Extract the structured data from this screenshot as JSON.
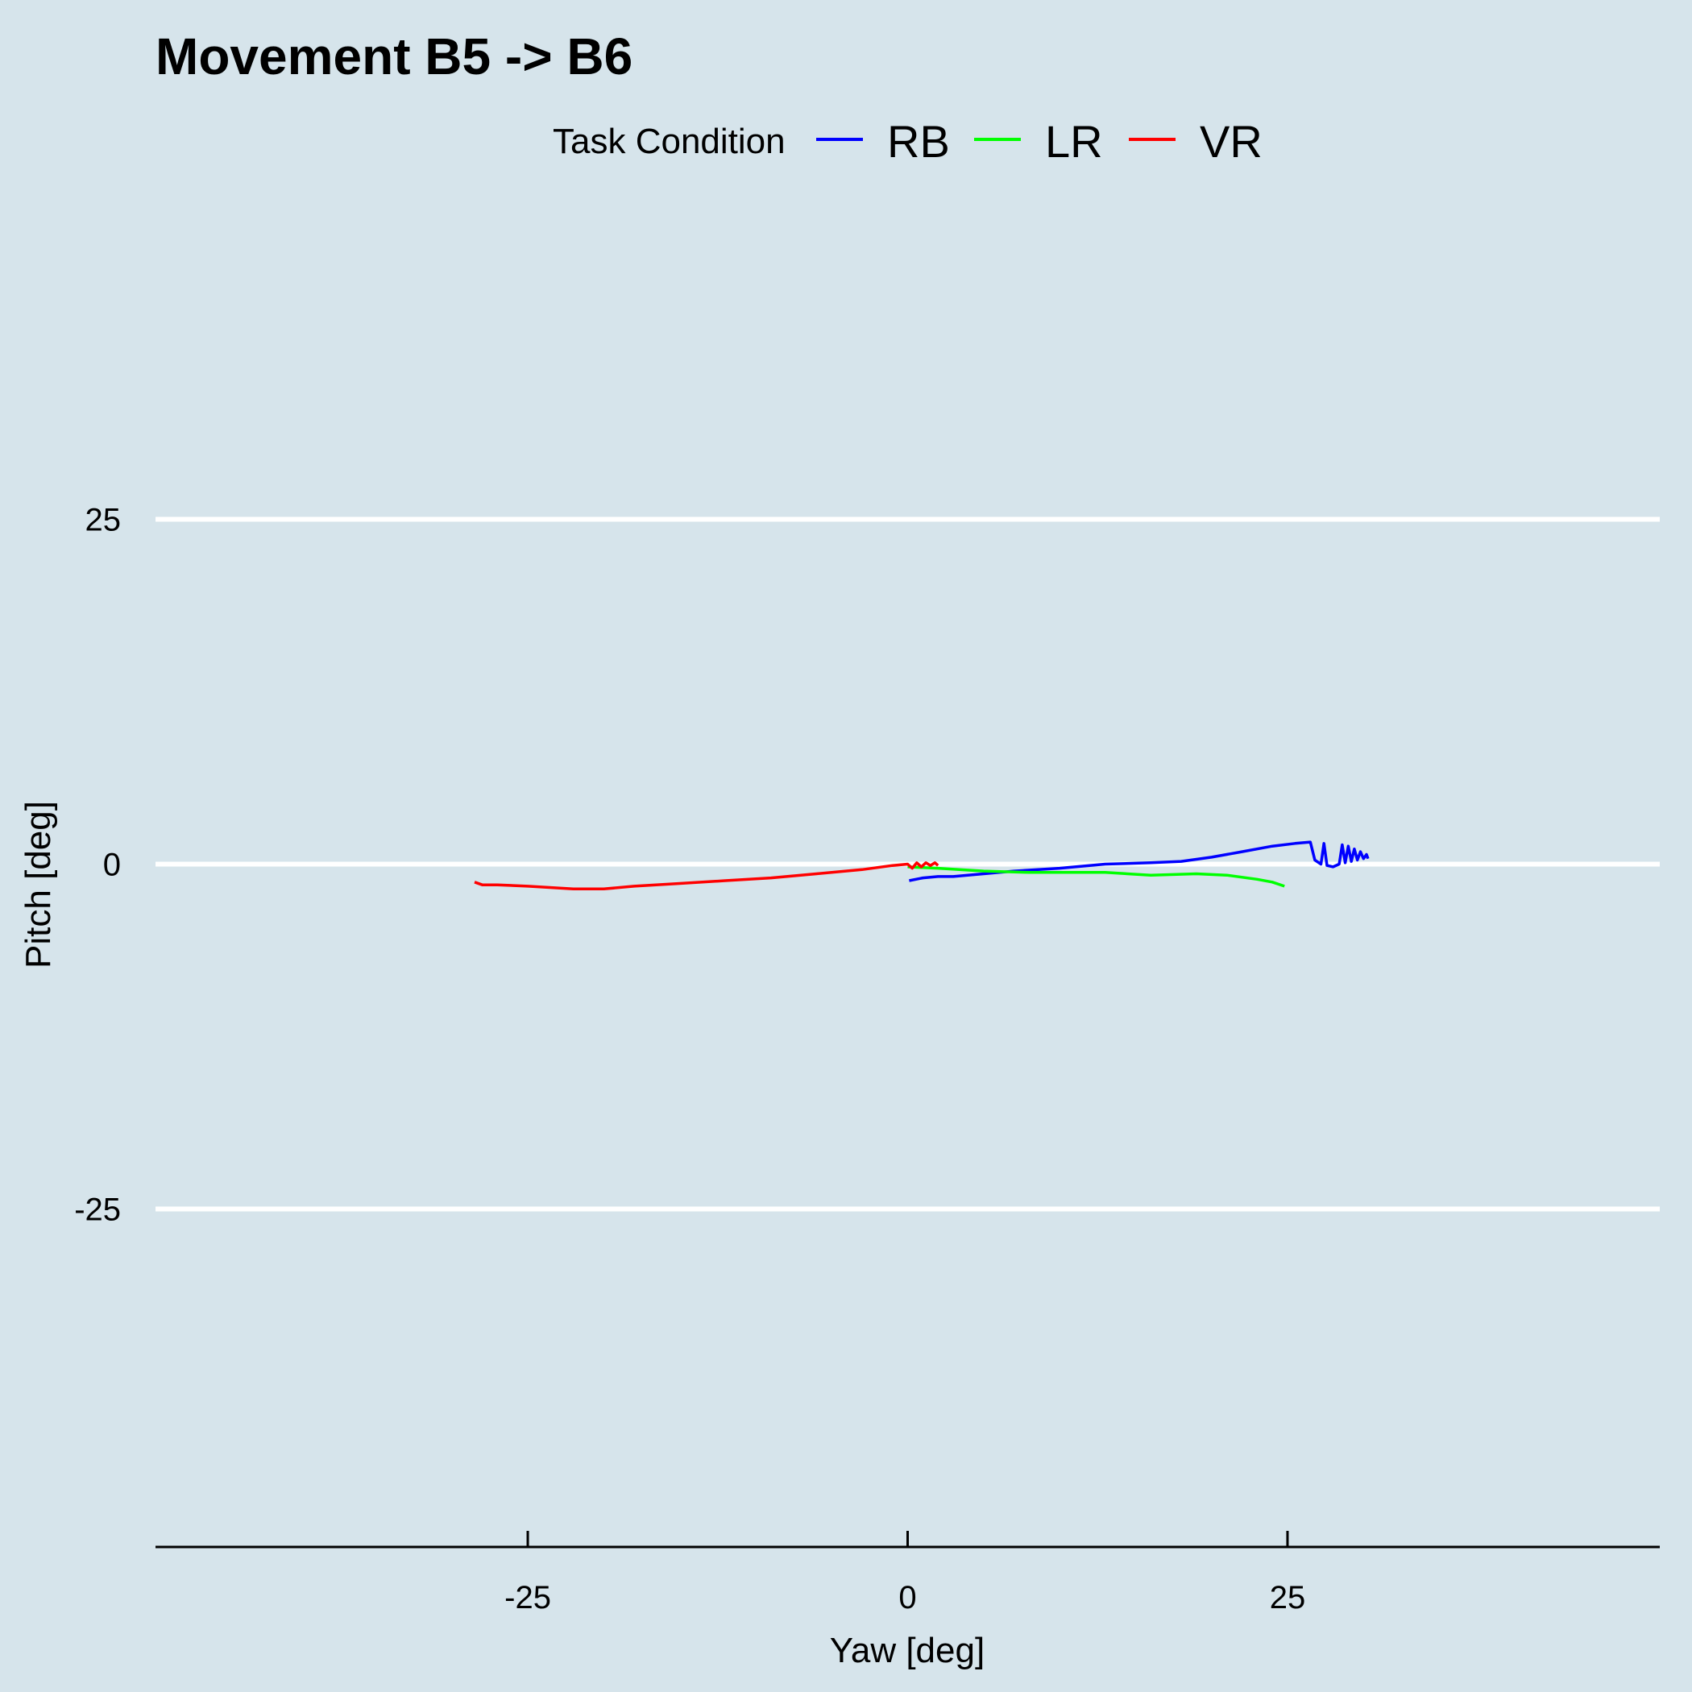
{
  "chart_data": {
    "type": "line",
    "title": "Movement B5 -> B6",
    "xlabel": "Yaw [deg]",
    "ylabel": "Pitch [deg]",
    "xlim": [
      -49.5,
      49.5
    ],
    "ylim": [
      -49.5,
      49.5
    ],
    "x_ticks": [
      -25,
      0,
      25
    ],
    "y_ticks": [
      25,
      0,
      -25
    ],
    "grid": "horizontal major lines only",
    "legend_position": "top",
    "legend_title": "Task Condition",
    "series": [
      {
        "name": "RB",
        "color": "#0000ff",
        "points": [
          [
            0.1,
            -1.2
          ],
          [
            1.0,
            -1.0
          ],
          [
            2.0,
            -0.9
          ],
          [
            3.0,
            -0.9
          ],
          [
            5.0,
            -0.7
          ],
          [
            7.0,
            -0.5
          ],
          [
            10.0,
            -0.3
          ],
          [
            13.0,
            0.0
          ],
          [
            16.0,
            0.1
          ],
          [
            18.0,
            0.2
          ],
          [
            20.0,
            0.5
          ],
          [
            22.0,
            0.9
          ],
          [
            24.0,
            1.3
          ],
          [
            25.5,
            1.5
          ],
          [
            26.5,
            1.6
          ],
          [
            26.8,
            0.3
          ],
          [
            27.2,
            0.0
          ],
          [
            27.4,
            1.5
          ],
          [
            27.6,
            -0.1
          ],
          [
            28.0,
            -0.2
          ],
          [
            28.4,
            0.0
          ],
          [
            28.6,
            1.4
          ],
          [
            28.8,
            0.1
          ],
          [
            29.0,
            1.3
          ],
          [
            29.2,
            0.2
          ],
          [
            29.4,
            1.1
          ],
          [
            29.6,
            0.3
          ],
          [
            29.8,
            0.9
          ],
          [
            30.0,
            0.4
          ],
          [
            30.2,
            0.7
          ],
          [
            30.3,
            0.4
          ]
        ]
      },
      {
        "name": "LR",
        "color": "#00ff00",
        "points": [
          [
            0.0,
            -0.2
          ],
          [
            2.0,
            -0.3
          ],
          [
            5.0,
            -0.5
          ],
          [
            8.0,
            -0.6
          ],
          [
            10.0,
            -0.6
          ],
          [
            13.0,
            -0.6
          ],
          [
            16.0,
            -0.8
          ],
          [
            19.0,
            -0.7
          ],
          [
            21.0,
            -0.8
          ],
          [
            23.0,
            -1.1
          ],
          [
            24.0,
            -1.3
          ],
          [
            24.8,
            -1.6
          ]
        ]
      },
      {
        "name": "VR",
        "color": "#ff0000",
        "points": [
          [
            -28.5,
            -1.3
          ],
          [
            -28.0,
            -1.5
          ],
          [
            -27.0,
            -1.5
          ],
          [
            -25.0,
            -1.6
          ],
          [
            -22.0,
            -1.8
          ],
          [
            -20.0,
            -1.8
          ],
          [
            -18.0,
            -1.6
          ],
          [
            -15.0,
            -1.4
          ],
          [
            -12.0,
            -1.2
          ],
          [
            -9.0,
            -1.0
          ],
          [
            -6.0,
            -0.7
          ],
          [
            -3.0,
            -0.4
          ],
          [
            -1.0,
            -0.1
          ],
          [
            0.0,
            0.0
          ],
          [
            0.3,
            -0.3
          ],
          [
            0.6,
            0.1
          ],
          [
            0.9,
            -0.2
          ],
          [
            1.2,
            0.1
          ],
          [
            1.5,
            -0.1
          ],
          [
            1.8,
            0.1
          ],
          [
            2.0,
            -0.1
          ]
        ]
      }
    ]
  }
}
